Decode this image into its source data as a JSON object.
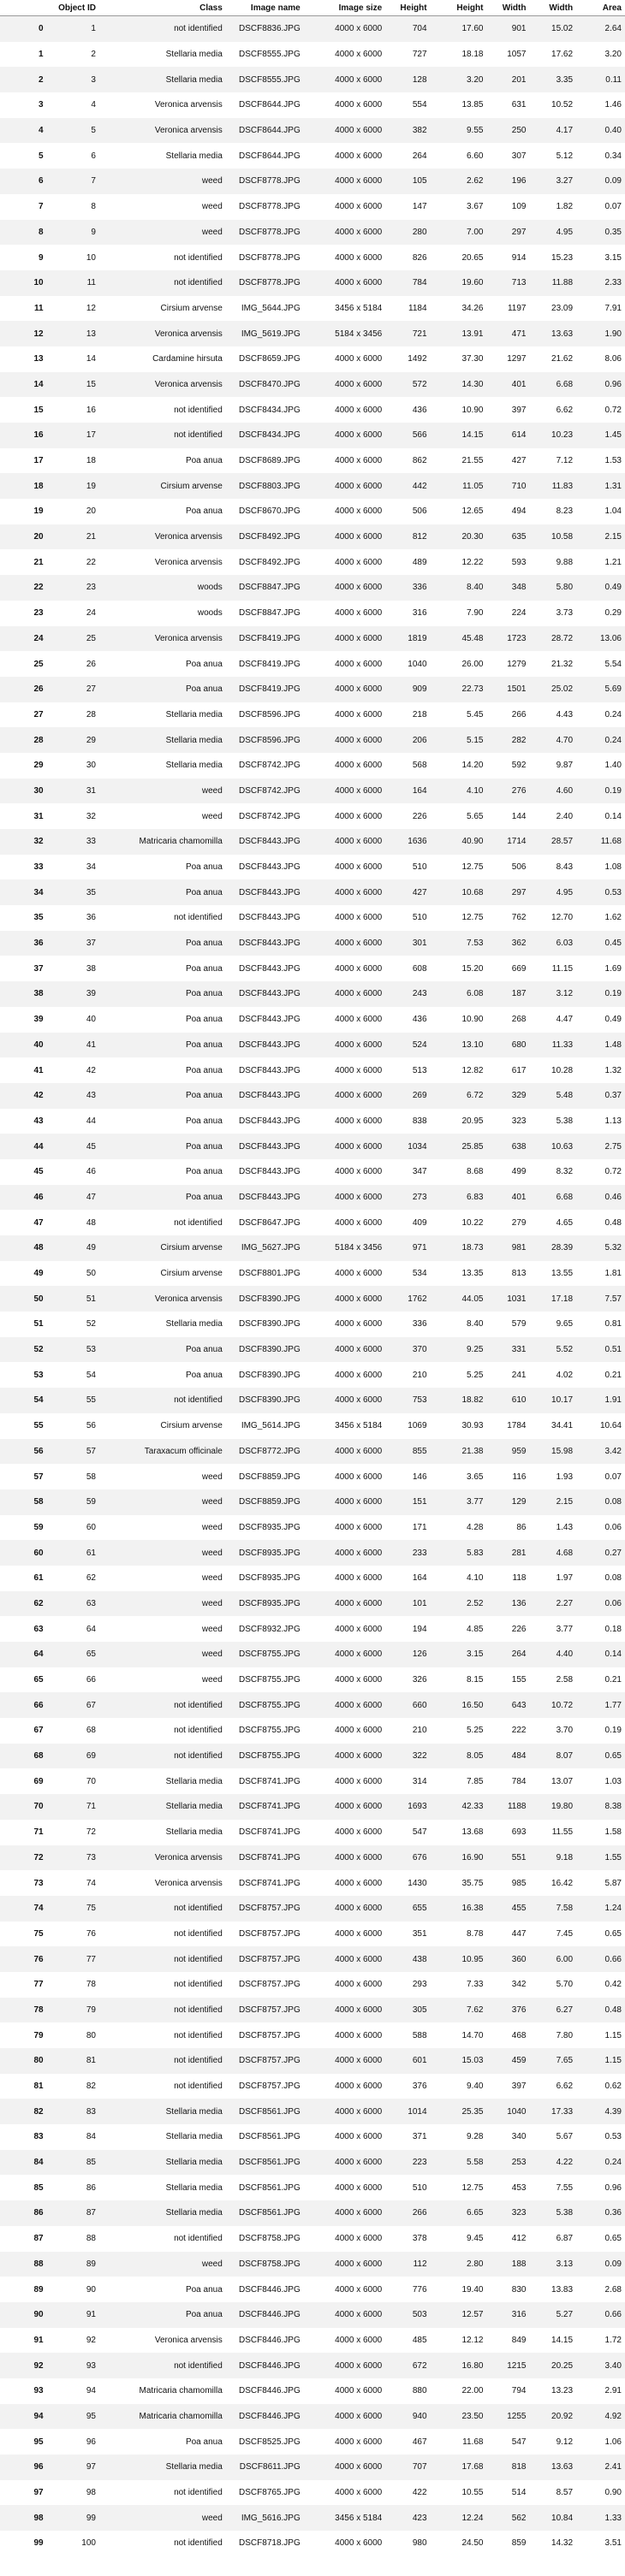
{
  "table": {
    "headers": [
      "",
      "Object ID",
      "Class",
      "Image name",
      "Image size",
      "Height",
      "Height",
      "Width",
      "Width",
      "Area"
    ],
    "rows": [
      [
        "0",
        "1",
        "not identified",
        "DSCF8836.JPG",
        "4000 x 6000",
        "704",
        "17.60",
        "901",
        "15.02",
        "2.64"
      ],
      [
        "1",
        "2",
        "Stellaria media",
        "DSCF8555.JPG",
        "4000 x 6000",
        "727",
        "18.18",
        "1057",
        "17.62",
        "3.20"
      ],
      [
        "2",
        "3",
        "Stellaria media",
        "DSCF8555.JPG",
        "4000 x 6000",
        "128",
        "3.20",
        "201",
        "3.35",
        "0.11"
      ],
      [
        "3",
        "4",
        "Veronica arvensis",
        "DSCF8644.JPG",
        "4000 x 6000",
        "554",
        "13.85",
        "631",
        "10.52",
        "1.46"
      ],
      [
        "4",
        "5",
        "Veronica arvensis",
        "DSCF8644.JPG",
        "4000 x 6000",
        "382",
        "9.55",
        "250",
        "4.17",
        "0.40"
      ],
      [
        "5",
        "6",
        "Stellaria media",
        "DSCF8644.JPG",
        "4000 x 6000",
        "264",
        "6.60",
        "307",
        "5.12",
        "0.34"
      ],
      [
        "6",
        "7",
        "weed",
        "DSCF8778.JPG",
        "4000 x 6000",
        "105",
        "2.62",
        "196",
        "3.27",
        "0.09"
      ],
      [
        "7",
        "8",
        "weed",
        "DSCF8778.JPG",
        "4000 x 6000",
        "147",
        "3.67",
        "109",
        "1.82",
        "0.07"
      ],
      [
        "8",
        "9",
        "weed",
        "DSCF8778.JPG",
        "4000 x 6000",
        "280",
        "7.00",
        "297",
        "4.95",
        "0.35"
      ],
      [
        "9",
        "10",
        "not identified",
        "DSCF8778.JPG",
        "4000 x 6000",
        "826",
        "20.65",
        "914",
        "15.23",
        "3.15"
      ],
      [
        "10",
        "11",
        "not identified",
        "DSCF8778.JPG",
        "4000 x 6000",
        "784",
        "19.60",
        "713",
        "11.88",
        "2.33"
      ],
      [
        "11",
        "12",
        "Cirsium arvense",
        "IMG_5644.JPG",
        "3456 x 5184",
        "1184",
        "34.26",
        "1197",
        "23.09",
        "7.91"
      ],
      [
        "12",
        "13",
        "Veronica arvensis",
        "IMG_5619.JPG",
        "5184 x 3456",
        "721",
        "13.91",
        "471",
        "13.63",
        "1.90"
      ],
      [
        "13",
        "14",
        "Cardamine hirsuta",
        "DSCF8659.JPG",
        "4000 x 6000",
        "1492",
        "37.30",
        "1297",
        "21.62",
        "8.06"
      ],
      [
        "14",
        "15",
        "Veronica arvensis",
        "DSCF8470.JPG",
        "4000 x 6000",
        "572",
        "14.30",
        "401",
        "6.68",
        "0.96"
      ],
      [
        "15",
        "16",
        "not identified",
        "DSCF8434.JPG",
        "4000 x 6000",
        "436",
        "10.90",
        "397",
        "6.62",
        "0.72"
      ],
      [
        "16",
        "17",
        "not identified",
        "DSCF8434.JPG",
        "4000 x 6000",
        "566",
        "14.15",
        "614",
        "10.23",
        "1.45"
      ],
      [
        "17",
        "18",
        "Poa anua",
        "DSCF8689.JPG",
        "4000 x 6000",
        "862",
        "21.55",
        "427",
        "7.12",
        "1.53"
      ],
      [
        "18",
        "19",
        "Cirsium arvense",
        "DSCF8803.JPG",
        "4000 x 6000",
        "442",
        "11.05",
        "710",
        "11.83",
        "1.31"
      ],
      [
        "19",
        "20",
        "Poa anua",
        "DSCF8670.JPG",
        "4000 x 6000",
        "506",
        "12.65",
        "494",
        "8.23",
        "1.04"
      ],
      [
        "20",
        "21",
        "Veronica arvensis",
        "DSCF8492.JPG",
        "4000 x 6000",
        "812",
        "20.30",
        "635",
        "10.58",
        "2.15"
      ],
      [
        "21",
        "22",
        "Veronica arvensis",
        "DSCF8492.JPG",
        "4000 x 6000",
        "489",
        "12.22",
        "593",
        "9.88",
        "1.21"
      ],
      [
        "22",
        "23",
        "woods",
        "DSCF8847.JPG",
        "4000 x 6000",
        "336",
        "8.40",
        "348",
        "5.80",
        "0.49"
      ],
      [
        "23",
        "24",
        "woods",
        "DSCF8847.JPG",
        "4000 x 6000",
        "316",
        "7.90",
        "224",
        "3.73",
        "0.29"
      ],
      [
        "24",
        "25",
        "Veronica arvensis",
        "DSCF8419.JPG",
        "4000 x 6000",
        "1819",
        "45.48",
        "1723",
        "28.72",
        "13.06"
      ],
      [
        "25",
        "26",
        "Poa anua",
        "DSCF8419.JPG",
        "4000 x 6000",
        "1040",
        "26.00",
        "1279",
        "21.32",
        "5.54"
      ],
      [
        "26",
        "27",
        "Poa anua",
        "DSCF8419.JPG",
        "4000 x 6000",
        "909",
        "22.73",
        "1501",
        "25.02",
        "5.69"
      ],
      [
        "27",
        "28",
        "Stellaria media",
        "DSCF8596.JPG",
        "4000 x 6000",
        "218",
        "5.45",
        "266",
        "4.43",
        "0.24"
      ],
      [
        "28",
        "29",
        "Stellaria media",
        "DSCF8596.JPG",
        "4000 x 6000",
        "206",
        "5.15",
        "282",
        "4.70",
        "0.24"
      ],
      [
        "29",
        "30",
        "Stellaria media",
        "DSCF8742.JPG",
        "4000 x 6000",
        "568",
        "14.20",
        "592",
        "9.87",
        "1.40"
      ],
      [
        "30",
        "31",
        "weed",
        "DSCF8742.JPG",
        "4000 x 6000",
        "164",
        "4.10",
        "276",
        "4.60",
        "0.19"
      ],
      [
        "31",
        "32",
        "weed",
        "DSCF8742.JPG",
        "4000 x 6000",
        "226",
        "5.65",
        "144",
        "2.40",
        "0.14"
      ],
      [
        "32",
        "33",
        "Matricaria chamomilla",
        "DSCF8443.JPG",
        "4000 x 6000",
        "1636",
        "40.90",
        "1714",
        "28.57",
        "11.68"
      ],
      [
        "33",
        "34",
        "Poa anua",
        "DSCF8443.JPG",
        "4000 x 6000",
        "510",
        "12.75",
        "506",
        "8.43",
        "1.08"
      ],
      [
        "34",
        "35",
        "Poa anua",
        "DSCF8443.JPG",
        "4000 x 6000",
        "427",
        "10.68",
        "297",
        "4.95",
        "0.53"
      ],
      [
        "35",
        "36",
        "not identified",
        "DSCF8443.JPG",
        "4000 x 6000",
        "510",
        "12.75",
        "762",
        "12.70",
        "1.62"
      ],
      [
        "36",
        "37",
        "Poa anua",
        "DSCF8443.JPG",
        "4000 x 6000",
        "301",
        "7.53",
        "362",
        "6.03",
        "0.45"
      ],
      [
        "37",
        "38",
        "Poa anua",
        "DSCF8443.JPG",
        "4000 x 6000",
        "608",
        "15.20",
        "669",
        "11.15",
        "1.69"
      ],
      [
        "38",
        "39",
        "Poa anua",
        "DSCF8443.JPG",
        "4000 x 6000",
        "243",
        "6.08",
        "187",
        "3.12",
        "0.19"
      ],
      [
        "39",
        "40",
        "Poa anua",
        "DSCF8443.JPG",
        "4000 x 6000",
        "436",
        "10.90",
        "268",
        "4.47",
        "0.49"
      ],
      [
        "40",
        "41",
        "Poa anua",
        "DSCF8443.JPG",
        "4000 x 6000",
        "524",
        "13.10",
        "680",
        "11.33",
        "1.48"
      ],
      [
        "41",
        "42",
        "Poa anua",
        "DSCF8443.JPG",
        "4000 x 6000",
        "513",
        "12.82",
        "617",
        "10.28",
        "1.32"
      ],
      [
        "42",
        "43",
        "Poa anua",
        "DSCF8443.JPG",
        "4000 x 6000",
        "269",
        "6.72",
        "329",
        "5.48",
        "0.37"
      ],
      [
        "43",
        "44",
        "Poa anua",
        "DSCF8443.JPG",
        "4000 x 6000",
        "838",
        "20.95",
        "323",
        "5.38",
        "1.13"
      ],
      [
        "44",
        "45",
        "Poa anua",
        "DSCF8443.JPG",
        "4000 x 6000",
        "1034",
        "25.85",
        "638",
        "10.63",
        "2.75"
      ],
      [
        "45",
        "46",
        "Poa anua",
        "DSCF8443.JPG",
        "4000 x 6000",
        "347",
        "8.68",
        "499",
        "8.32",
        "0.72"
      ],
      [
        "46",
        "47",
        "Poa anua",
        "DSCF8443.JPG",
        "4000 x 6000",
        "273",
        "6.83",
        "401",
        "6.68",
        "0.46"
      ],
      [
        "47",
        "48",
        "not identified",
        "DSCF8647.JPG",
        "4000 x 6000",
        "409",
        "10.22",
        "279",
        "4.65",
        "0.48"
      ],
      [
        "48",
        "49",
        "Cirsium arvense",
        "IMG_5627.JPG",
        "5184 x 3456",
        "971",
        "18.73",
        "981",
        "28.39",
        "5.32"
      ],
      [
        "49",
        "50",
        "Cirsium arvense",
        "DSCF8801.JPG",
        "4000 x 6000",
        "534",
        "13.35",
        "813",
        "13.55",
        "1.81"
      ],
      [
        "50",
        "51",
        "Veronica arvensis",
        "DSCF8390.JPG",
        "4000 x 6000",
        "1762",
        "44.05",
        "1031",
        "17.18",
        "7.57"
      ],
      [
        "51",
        "52",
        "Stellaria media",
        "DSCF8390.JPG",
        "4000 x 6000",
        "336",
        "8.40",
        "579",
        "9.65",
        "0.81"
      ],
      [
        "52",
        "53",
        "Poa anua",
        "DSCF8390.JPG",
        "4000 x 6000",
        "370",
        "9.25",
        "331",
        "5.52",
        "0.51"
      ],
      [
        "53",
        "54",
        "Poa anua",
        "DSCF8390.JPG",
        "4000 x 6000",
        "210",
        "5.25",
        "241",
        "4.02",
        "0.21"
      ],
      [
        "54",
        "55",
        "not identified",
        "DSCF8390.JPG",
        "4000 x 6000",
        "753",
        "18.82",
        "610",
        "10.17",
        "1.91"
      ],
      [
        "55",
        "56",
        "Cirsium arvense",
        "IMG_5614.JPG",
        "3456 x 5184",
        "1069",
        "30.93",
        "1784",
        "34.41",
        "10.64"
      ],
      [
        "56",
        "57",
        "Taraxacum officinale",
        "DSCF8772.JPG",
        "4000 x 6000",
        "855",
        "21.38",
        "959",
        "15.98",
        "3.42"
      ],
      [
        "57",
        "58",
        "weed",
        "DSCF8859.JPG",
        "4000 x 6000",
        "146",
        "3.65",
        "116",
        "1.93",
        "0.07"
      ],
      [
        "58",
        "59",
        "weed",
        "DSCF8859.JPG",
        "4000 x 6000",
        "151",
        "3.77",
        "129",
        "2.15",
        "0.08"
      ],
      [
        "59",
        "60",
        "weed",
        "DSCF8935.JPG",
        "4000 x 6000",
        "171",
        "4.28",
        "86",
        "1.43",
        "0.06"
      ],
      [
        "60",
        "61",
        "weed",
        "DSCF8935.JPG",
        "4000 x 6000",
        "233",
        "5.83",
        "281",
        "4.68",
        "0.27"
      ],
      [
        "61",
        "62",
        "weed",
        "DSCF8935.JPG",
        "4000 x 6000",
        "164",
        "4.10",
        "118",
        "1.97",
        "0.08"
      ],
      [
        "62",
        "63",
        "weed",
        "DSCF8935.JPG",
        "4000 x 6000",
        "101",
        "2.52",
        "136",
        "2.27",
        "0.06"
      ],
      [
        "63",
        "64",
        "weed",
        "DSCF8932.JPG",
        "4000 x 6000",
        "194",
        "4.85",
        "226",
        "3.77",
        "0.18"
      ],
      [
        "64",
        "65",
        "weed",
        "DSCF8755.JPG",
        "4000 x 6000",
        "126",
        "3.15",
        "264",
        "4.40",
        "0.14"
      ],
      [
        "65",
        "66",
        "weed",
        "DSCF8755.JPG",
        "4000 x 6000",
        "326",
        "8.15",
        "155",
        "2.58",
        "0.21"
      ],
      [
        "66",
        "67",
        "not identified",
        "DSCF8755.JPG",
        "4000 x 6000",
        "660",
        "16.50",
        "643",
        "10.72",
        "1.77"
      ],
      [
        "67",
        "68",
        "not identified",
        "DSCF8755.JPG",
        "4000 x 6000",
        "210",
        "5.25",
        "222",
        "3.70",
        "0.19"
      ],
      [
        "68",
        "69",
        "not identified",
        "DSCF8755.JPG",
        "4000 x 6000",
        "322",
        "8.05",
        "484",
        "8.07",
        "0.65"
      ],
      [
        "69",
        "70",
        "Stellaria media",
        "DSCF8741.JPG",
        "4000 x 6000",
        "314",
        "7.85",
        "784",
        "13.07",
        "1.03"
      ],
      [
        "70",
        "71",
        "Stellaria media",
        "DSCF8741.JPG",
        "4000 x 6000",
        "1693",
        "42.33",
        "1188",
        "19.80",
        "8.38"
      ],
      [
        "71",
        "72",
        "Stellaria media",
        "DSCF8741.JPG",
        "4000 x 6000",
        "547",
        "13.68",
        "693",
        "11.55",
        "1.58"
      ],
      [
        "72",
        "73",
        "Veronica arvensis",
        "DSCF8741.JPG",
        "4000 x 6000",
        "676",
        "16.90",
        "551",
        "9.18",
        "1.55"
      ],
      [
        "73",
        "74",
        "Veronica arvensis",
        "DSCF8741.JPG",
        "4000 x 6000",
        "1430",
        "35.75",
        "985",
        "16.42",
        "5.87"
      ],
      [
        "74",
        "75",
        "not identified",
        "DSCF8757.JPG",
        "4000 x 6000",
        "655",
        "16.38",
        "455",
        "7.58",
        "1.24"
      ],
      [
        "75",
        "76",
        "not identified",
        "DSCF8757.JPG",
        "4000 x 6000",
        "351",
        "8.78",
        "447",
        "7.45",
        "0.65"
      ],
      [
        "76",
        "77",
        "not identified",
        "DSCF8757.JPG",
        "4000 x 6000",
        "438",
        "10.95",
        "360",
        "6.00",
        "0.66"
      ],
      [
        "77",
        "78",
        "not identified",
        "DSCF8757.JPG",
        "4000 x 6000",
        "293",
        "7.33",
        "342",
        "5.70",
        "0.42"
      ],
      [
        "78",
        "79",
        "not identified",
        "DSCF8757.JPG",
        "4000 x 6000",
        "305",
        "7.62",
        "376",
        "6.27",
        "0.48"
      ],
      [
        "79",
        "80",
        "not identified",
        "DSCF8757.JPG",
        "4000 x 6000",
        "588",
        "14.70",
        "468",
        "7.80",
        "1.15"
      ],
      [
        "80",
        "81",
        "not identified",
        "DSCF8757.JPG",
        "4000 x 6000",
        "601",
        "15.03",
        "459",
        "7.65",
        "1.15"
      ],
      [
        "81",
        "82",
        "not identified",
        "DSCF8757.JPG",
        "4000 x 6000",
        "376",
        "9.40",
        "397",
        "6.62",
        "0.62"
      ],
      [
        "82",
        "83",
        "Stellaria media",
        "DSCF8561.JPG",
        "4000 x 6000",
        "1014",
        "25.35",
        "1040",
        "17.33",
        "4.39"
      ],
      [
        "83",
        "84",
        "Stellaria media",
        "DSCF8561.JPG",
        "4000 x 6000",
        "371",
        "9.28",
        "340",
        "5.67",
        "0.53"
      ],
      [
        "84",
        "85",
        "Stellaria media",
        "DSCF8561.JPG",
        "4000 x 6000",
        "223",
        "5.58",
        "253",
        "4.22",
        "0.24"
      ],
      [
        "85",
        "86",
        "Stellaria media",
        "DSCF8561.JPG",
        "4000 x 6000",
        "510",
        "12.75",
        "453",
        "7.55",
        "0.96"
      ],
      [
        "86",
        "87",
        "Stellaria media",
        "DSCF8561.JPG",
        "4000 x 6000",
        "266",
        "6.65",
        "323",
        "5.38",
        "0.36"
      ],
      [
        "87",
        "88",
        "not identified",
        "DSCF8758.JPG",
        "4000 x 6000",
        "378",
        "9.45",
        "412",
        "6.87",
        "0.65"
      ],
      [
        "88",
        "89",
        "weed",
        "DSCF8758.JPG",
        "4000 x 6000",
        "112",
        "2.80",
        "188",
        "3.13",
        "0.09"
      ],
      [
        "89",
        "90",
        "Poa anua",
        "DSCF8446.JPG",
        "4000 x 6000",
        "776",
        "19.40",
        "830",
        "13.83",
        "2.68"
      ],
      [
        "90",
        "91",
        "Poa anua",
        "DSCF8446.JPG",
        "4000 x 6000",
        "503",
        "12.57",
        "316",
        "5.27",
        "0.66"
      ],
      [
        "91",
        "92",
        "Veronica arvensis",
        "DSCF8446.JPG",
        "4000 x 6000",
        "485",
        "12.12",
        "849",
        "14.15",
        "1.72"
      ],
      [
        "92",
        "93",
        "not identified",
        "DSCF8446.JPG",
        "4000 x 6000",
        "672",
        "16.80",
        "1215",
        "20.25",
        "3.40"
      ],
      [
        "93",
        "94",
        "Matricaria chamomilla",
        "DSCF8446.JPG",
        "4000 x 6000",
        "880",
        "22.00",
        "794",
        "13.23",
        "2.91"
      ],
      [
        "94",
        "95",
        "Matricaria chamomilla",
        "DSCF8446.JPG",
        "4000 x 6000",
        "940",
        "23.50",
        "1255",
        "20.92",
        "4.92"
      ],
      [
        "95",
        "96",
        "Poa anua",
        "DSCF8525.JPG",
        "4000 x 6000",
        "467",
        "11.68",
        "547",
        "9.12",
        "1.06"
      ],
      [
        "96",
        "97",
        "Stellaria media",
        "DSCF8611.JPG",
        "4000 x 6000",
        "707",
        "17.68",
        "818",
        "13.63",
        "2.41"
      ],
      [
        "97",
        "98",
        "not identified",
        "DSCF8765.JPG",
        "4000 x 6000",
        "422",
        "10.55",
        "514",
        "8.57",
        "0.90"
      ],
      [
        "98",
        "99",
        "weed",
        "IMG_5616.JPG",
        "3456 x 5184",
        "423",
        "12.24",
        "562",
        "10.84",
        "1.33"
      ],
      [
        "99",
        "100",
        "not identified",
        "DSCF8718.JPG",
        "4000 x 6000",
        "980",
        "24.50",
        "859",
        "14.32",
        "3.51"
      ]
    ]
  }
}
